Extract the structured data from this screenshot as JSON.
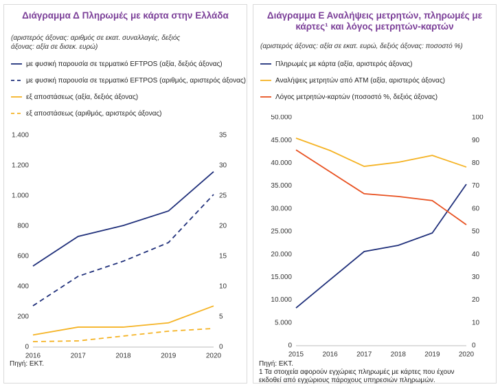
{
  "chart_data": [
    {
      "type": "line",
      "title": "Διάγραμμα Δ Πληρωμές με κάρτα στην Ελλάδα",
      "subtitle": "(αριστερός άξονας: αριθμός σε εκατ. συναλλαγές, δεξιός άξονας: αξία σε δισεκ. ευρώ)",
      "categories": [
        "2016",
        "2017",
        "2018",
        "2019",
        "2020"
      ],
      "series": [
        {
          "name": "με φυσική παρουσία σε τερματικό EFTPOS (αξία, δεξιός άξονας)",
          "color": "#1f2f7a",
          "dash": false,
          "axis": "y2",
          "values": [
            13.4,
            18.3,
            20.1,
            22.5,
            29.0
          ]
        },
        {
          "name": "με φυσική παρουσία σε τερματικό EFTPOS (αριθμός, αριστερός άξονας)",
          "color": "#1f2f7a",
          "dash": true,
          "axis": "y",
          "values": [
            273,
            468,
            568,
            691,
            1009
          ]
        },
        {
          "name": "εξ αποστάσεως (αξία, δεξιός άξονας)",
          "color": "#f5b324",
          "dash": false,
          "axis": "y2",
          "values": [
            2.0,
            3.3,
            3.3,
            4.0,
            6.8
          ]
        },
        {
          "name": "εξ αποστάσεως (αριθμός, αριστερός άξονας)",
          "color": "#f5b324",
          "dash": true,
          "axis": "y",
          "values": [
            36,
            41,
            73,
            105,
            123
          ]
        }
      ],
      "ylim": [
        0,
        1400
      ],
      "yticks": [
        0,
        200,
        400,
        600,
        800,
        {
          "value": 1000,
          "label": "1.000"
        },
        {
          "value": 1200,
          "label": "1.200"
        },
        {
          "value": 1400,
          "label": "1.400"
        }
      ],
      "y2lim": [
        0,
        35
      ],
      "y2ticks": [
        0,
        5,
        10,
        15,
        20,
        25,
        30,
        35
      ],
      "source": "Πηγή: ΕΚΤ."
    },
    {
      "type": "line",
      "title": "Διάγραμμα Ε Αναλήψεις μετρητών, πληρωμές με κάρτες¹ και λόγος μετρητών-καρτών",
      "subtitle": "(αριστερός άξονας: αξία σε εκατ. ευρώ, δεξιός άξονας: ποσοστό %)",
      "categories": [
        "2015",
        "2016",
        "2017",
        "2018",
        "2019",
        "2020"
      ],
      "series": [
        {
          "name": "Πληρωμές με κάρτα  (αξία, αριστερός άξονας)",
          "color": "#1f2f7a",
          "dash": false,
          "axis": "y",
          "values": [
            8280,
            14460,
            20630,
            21990,
            24700,
            35390
          ]
        },
        {
          "name": "Αναλήψεις μετρητών από ATM (αξία, αριστερός άξονας)",
          "color": "#f5b324",
          "dash": false,
          "axis": "y",
          "values": [
            45480,
            42770,
            39300,
            40200,
            41700,
            39150
          ]
        },
        {
          "name": "Λόγος μετρητών-καρτών (ποσοστό %, δεξιός άξονας)",
          "color": "#e8501f",
          "dash": false,
          "axis": "y2",
          "values": [
            85.8,
            76.2,
            66.6,
            65.4,
            63.6,
            53.0
          ]
        }
      ],
      "ylim": [
        0,
        50000
      ],
      "yticks": [
        0,
        {
          "value": 5000,
          "label": "5.000"
        },
        {
          "value": 10000,
          "label": "10.000"
        },
        {
          "value": 15000,
          "label": "15.000"
        },
        {
          "value": 20000,
          "label": "20.000"
        },
        {
          "value": 25000,
          "label": "25.000"
        },
        {
          "value": 30000,
          "label": "30.000"
        },
        {
          "value": 35000,
          "label": "35.000"
        },
        {
          "value": 40000,
          "label": "40.000"
        },
        {
          "value": 45000,
          "label": "45.000"
        },
        {
          "value": 50000,
          "label": "50.000"
        }
      ],
      "y2lim": [
        0,
        100
      ],
      "y2ticks": [
        0,
        10,
        20,
        30,
        40,
        50,
        60,
        70,
        80,
        90,
        100
      ],
      "source": "Πηγή: ΕΚΤ.",
      "note": "1 Τα στοιχεία αφορούν εγχώριες πληρωμές με κάρτες που έχουν εκδοθεί από εγχώριους πάροχους υπηρεσιών πληρωμών."
    }
  ]
}
